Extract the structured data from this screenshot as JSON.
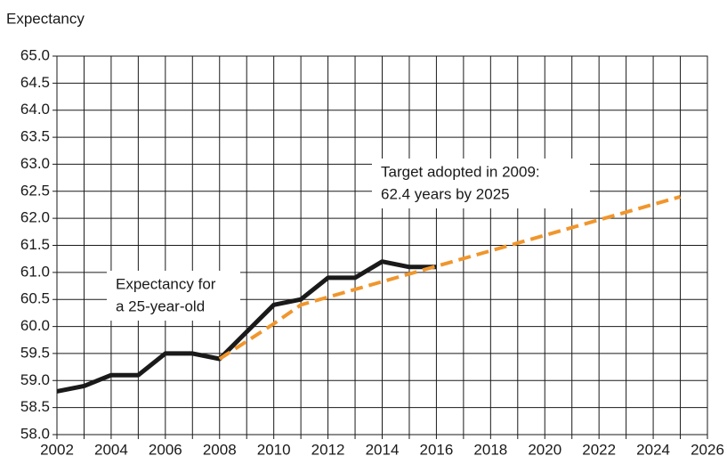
{
  "chart_data": {
    "type": "line",
    "y_label": "Expectancy",
    "xlim": [
      2002,
      2026
    ],
    "xticks": [
      2002,
      2004,
      2006,
      2008,
      2010,
      2012,
      2014,
      2016,
      2018,
      2020,
      2022,
      2024,
      2026
    ],
    "x_minor_ticks": [
      2003,
      2005,
      2007,
      2009,
      2011,
      2013,
      2015,
      2017,
      2019,
      2021,
      2023,
      2025
    ],
    "ylim": [
      58,
      65
    ],
    "yticks": [
      {
        "value": 58,
        "label": "58.0"
      },
      58.5,
      {
        "value": 59,
        "label": "59.0"
      },
      59.5,
      {
        "value": 60,
        "label": "60.0"
      },
      60.5,
      {
        "value": 61,
        "label": "61.0"
      },
      61.5,
      {
        "value": 62,
        "label": "62.0"
      },
      62.5,
      {
        "value": 63,
        "label": "63.0"
      },
      63.5,
      {
        "value": 64,
        "label": "64.0"
      },
      64.5,
      {
        "value": 65,
        "label": "65.0"
      }
    ],
    "grid": true,
    "series": [
      {
        "color": "#1a1a1a",
        "dashed": false,
        "x": [
          2002,
          2003,
          2004,
          2005,
          2006,
          2007,
          2008,
          2009,
          2010,
          2011,
          2012,
          2013,
          2014,
          2015,
          2016
        ],
        "values": [
          58.8,
          58.9,
          59.1,
          59.1,
          59.5,
          59.5,
          59.4,
          59.9,
          60.4,
          60.5,
          60.9,
          60.9,
          61.2,
          61.1,
          61.1
        ]
      },
      {
        "color": "#f0962d",
        "dashed": true,
        "x": [
          2008,
          2010,
          2011,
          2025
        ],
        "values": [
          59.4,
          60.05,
          60.4,
          62.4
        ]
      }
    ],
    "annotations": [
      {
        "lines": [
          "Expectancy for",
          "a 25-year-old"
        ]
      },
      {
        "lines": [
          "Target adopted in 2009:",
          "62.4 years by 2025"
        ]
      }
    ]
  }
}
